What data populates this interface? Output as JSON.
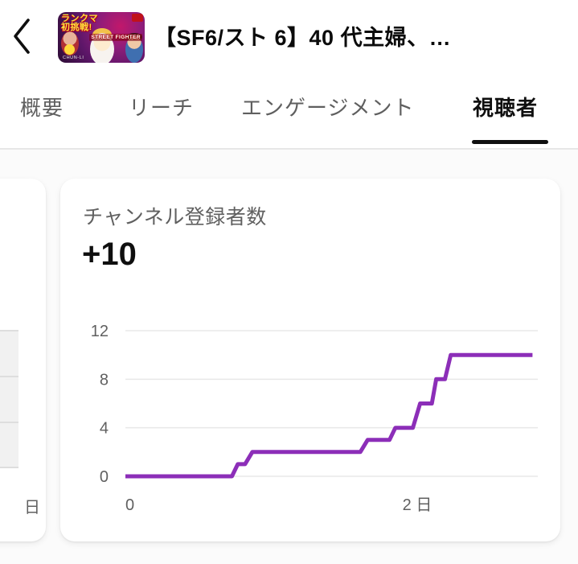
{
  "header": {
    "title": "【SF6/スト 6】40 代主婦、…",
    "thumbnail": {
      "badge_line1": "ランクマ",
      "badge_line2": "初挑戦!",
      "logo_text": "STREET FIGHTER",
      "caption": "CHUN-LI"
    }
  },
  "tabs": {
    "items": [
      {
        "label": "概要",
        "active": false
      },
      {
        "label": "リーチ",
        "active": false
      },
      {
        "label": "エンゲージメント",
        "active": false
      },
      {
        "label": "視聴者",
        "active": true
      }
    ]
  },
  "cards": {
    "left_partial": {
      "x_axis_label": "日"
    },
    "subscribers": {
      "title": "チャンネル登録者数",
      "value": "+10"
    }
  },
  "chart_data": {
    "type": "line",
    "subtype": "step",
    "title": "チャンネル登録者数",
    "total_change": "+10",
    "ylabel": "",
    "xlabel": "",
    "x_unit": "日",
    "xlim_days": [
      0,
      2.84
    ],
    "ylim": [
      0,
      12
    ],
    "grid": true,
    "grid_color": "#e8e8e8",
    "line_color": "#8c2eb8",
    "label_color": "#606060",
    "y_ticks": [
      0,
      4,
      8,
      12
    ],
    "x_ticks": [
      {
        "label": "0",
        "day": 0
      },
      {
        "label": "2 日",
        "day": 2
      }
    ],
    "points_day_value": [
      [
        0,
        0
      ],
      [
        0.73,
        0
      ],
      [
        0.77,
        1
      ],
      [
        0.82,
        1
      ],
      [
        0.87,
        2
      ],
      [
        1.61,
        2
      ],
      [
        1.66,
        3
      ],
      [
        1.81,
        3
      ],
      [
        1.85,
        4
      ],
      [
        1.97,
        4
      ],
      [
        2.02,
        6
      ],
      [
        2.1,
        6
      ],
      [
        2.13,
        8
      ],
      [
        2.19,
        8
      ],
      [
        2.23,
        10
      ],
      [
        2.79,
        10
      ]
    ]
  }
}
